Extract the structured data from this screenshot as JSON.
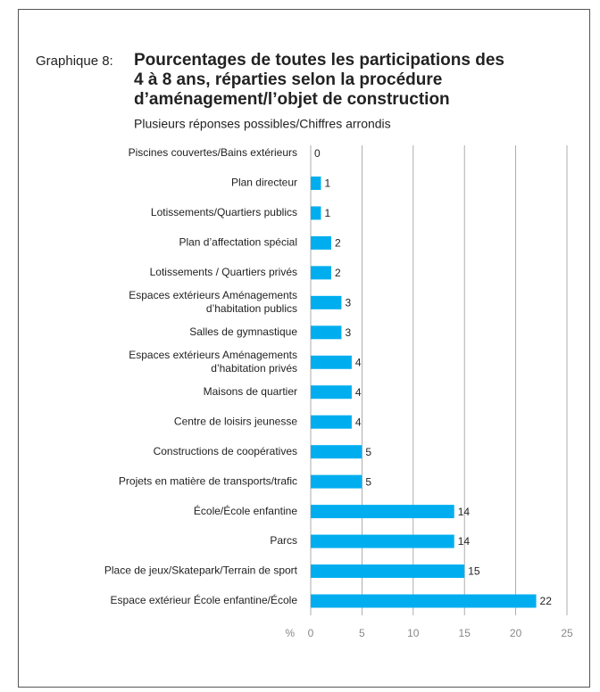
{
  "chart_data": {
    "type": "barh",
    "label": "Graphique 8:",
    "title": "Pourcentages de toutes les participations des\n4 à 8 ans, réparties selon la procédure\nd’aménagement/l’objet de construction",
    "subtitle": "Plusieurs réponses possibles/Chiffres arrondis",
    "x_label": "%",
    "categories": [
      "Piscines couvertes/Bains extérieurs",
      "Plan directeur",
      "Lotissements/Quartiers publics",
      "Plan d’affectation spécial",
      "Lotissements / Quartiers privés",
      "Espaces extérieurs Aménagements\nd’habitation publics",
      "Salles de gymnastique",
      "Espaces extérieurs Aménagements\nd’habitation privés",
      "Maisons de quartier",
      "Centre de loisirs jeunesse",
      "Constructions de coopératives",
      "Projets en matière de transports/trafic",
      "École/École enfantine",
      "Parcs",
      "Place de jeux/Skatepark/Terrain de sport",
      "Espace extérieur École enfantine/École"
    ],
    "values": [
      0,
      1,
      1,
      2,
      2,
      3,
      3,
      4,
      4,
      4,
      5,
      5,
      14,
      14,
      15,
      22
    ],
    "color": "#00aeef",
    "xlim": [
      0,
      25
    ],
    "xticks": [
      0,
      5,
      10,
      15,
      20,
      25
    ],
    "grid": true
  }
}
